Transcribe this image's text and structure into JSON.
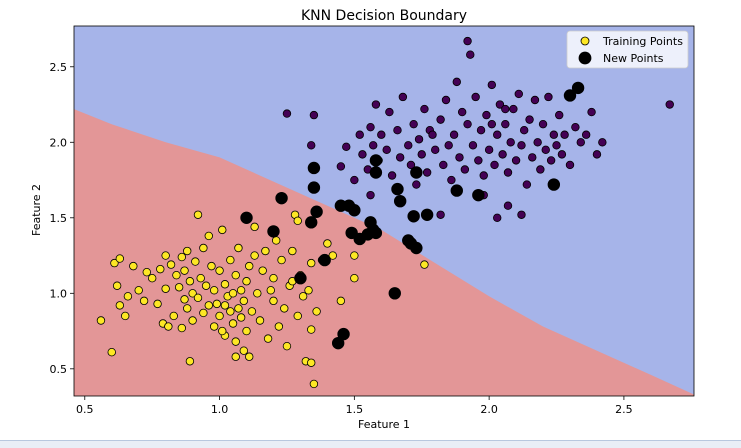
{
  "chart_data": {
    "type": "scatter",
    "title": "KNN Decision Boundary",
    "xlabel": "Feature 1",
    "ylabel": "Feature 2",
    "xlim": [
      0.46,
      2.76
    ],
    "ylim": [
      0.32,
      2.77
    ],
    "x_ticks": [
      0.5,
      1.0,
      1.5,
      2.0,
      2.5
    ],
    "y_ticks": [
      0.5,
      1.0,
      1.5,
      2.0,
      2.5
    ],
    "x_tick_labels": [
      "0.5",
      "1.0",
      "1.5",
      "2.0",
      "2.5"
    ],
    "y_tick_labels": [
      "0.5",
      "1.0",
      "1.5",
      "2.0",
      "2.5"
    ],
    "grid": false,
    "legend_position": "top-right",
    "colors": {
      "region_class0": "#e39697",
      "region_class1": "#a6b4e9",
      "train_class0": "#fde725",
      "train_class1": "#440154",
      "new_point": "#000000"
    },
    "decision_boundary": [
      [
        0.46,
        2.22
      ],
      [
        0.6,
        2.12
      ],
      [
        0.8,
        2.0
      ],
      [
        1.0,
        1.9
      ],
      [
        1.2,
        1.74
      ],
      [
        1.4,
        1.58
      ],
      [
        1.6,
        1.42
      ],
      [
        1.8,
        1.2
      ],
      [
        2.0,
        0.98
      ],
      [
        2.2,
        0.78
      ],
      [
        2.4,
        0.62
      ],
      [
        2.6,
        0.46
      ],
      [
        2.76,
        0.33
      ]
    ],
    "series": [
      {
        "name": "Training Points",
        "class": 0,
        "points": [
          [
            0.56,
            0.82
          ],
          [
            0.6,
            0.61
          ],
          [
            0.61,
            1.2
          ],
          [
            0.62,
            1.05
          ],
          [
            0.63,
            1.23
          ],
          [
            0.63,
            0.92
          ],
          [
            0.65,
            0.85
          ],
          [
            0.66,
            0.98
          ],
          [
            0.68,
            1.18
          ],
          [
            0.7,
            1.02
          ],
          [
            0.72,
            0.95
          ],
          [
            0.73,
            1.14
          ],
          [
            0.75,
            1.1
          ],
          [
            0.77,
            0.93
          ],
          [
            0.78,
            1.16
          ],
          [
            0.79,
            0.8
          ],
          [
            0.8,
            1.25
          ],
          [
            0.8,
            1.03
          ],
          [
            0.81,
            0.78
          ],
          [
            0.82,
            1.19
          ],
          [
            0.83,
            0.85
          ],
          [
            0.84,
            1.12
          ],
          [
            0.85,
            1.04
          ],
          [
            0.86,
            0.77
          ],
          [
            0.86,
            1.24
          ],
          [
            0.87,
            0.96
          ],
          [
            0.87,
            1.15
          ],
          [
            0.88,
            0.9
          ],
          [
            0.88,
            1.28
          ],
          [
            0.89,
            1.08
          ],
          [
            0.89,
            0.55
          ],
          [
            0.9,
            1.0
          ],
          [
            0.9,
            0.82
          ],
          [
            0.91,
            1.21
          ],
          [
            0.92,
            1.52
          ],
          [
            0.92,
            0.97
          ],
          [
            0.93,
            1.1
          ],
          [
            0.94,
            0.87
          ],
          [
            0.94,
            1.3
          ],
          [
            0.95,
            1.05
          ],
          [
            0.96,
            0.92
          ],
          [
            0.96,
            1.38
          ],
          [
            0.97,
            1.18
          ],
          [
            0.98,
            1.02
          ],
          [
            0.98,
            0.78
          ],
          [
            0.99,
            0.93
          ],
          [
            1.0,
            1.15
          ],
          [
            1.0,
            0.85
          ],
          [
            1.01,
            1.42
          ],
          [
            1.02,
            1.06
          ],
          [
            1.02,
            0.72
          ],
          [
            1.03,
            0.98
          ],
          [
            1.04,
            0.88
          ],
          [
            1.04,
            1.22
          ],
          [
            1.05,
            1.0
          ],
          [
            1.05,
            0.8
          ],
          [
            1.06,
            1.12
          ],
          [
            1.06,
            0.68
          ],
          [
            1.07,
            0.9
          ],
          [
            1.07,
            1.3
          ],
          [
            1.08,
            0.84
          ],
          [
            1.08,
            1.02
          ],
          [
            1.09,
            0.62
          ],
          [
            1.09,
            0.95
          ],
          [
            1.1,
            1.08
          ],
          [
            1.1,
            0.75
          ],
          [
            1.11,
            1.18
          ],
          [
            1.11,
            0.58
          ],
          [
            1.12,
            0.88
          ],
          [
            1.13,
            1.25
          ],
          [
            1.14,
            1.0
          ],
          [
            1.15,
            0.82
          ],
          [
            1.16,
            1.15
          ],
          [
            1.17,
            1.28
          ],
          [
            1.18,
            0.7
          ],
          [
            1.19,
            1.02
          ],
          [
            1.2,
            0.95
          ],
          [
            1.2,
            1.1
          ],
          [
            1.21,
            1.35
          ],
          [
            1.22,
            0.78
          ],
          [
            1.23,
            1.22
          ],
          [
            1.24,
            0.9
          ],
          [
            1.25,
            0.65
          ],
          [
            1.26,
            1.05
          ],
          [
            1.27,
            1.28
          ],
          [
            1.28,
            1.52
          ],
          [
            1.29,
            0.85
          ],
          [
            1.3,
            1.12
          ],
          [
            1.31,
            0.98
          ],
          [
            1.32,
            0.55
          ],
          [
            1.33,
            1.02
          ],
          [
            1.34,
            0.76
          ],
          [
            1.35,
            0.4
          ],
          [
            1.36,
            0.88
          ],
          [
            1.38,
            1.22
          ],
          [
            1.4,
            1.33
          ],
          [
            1.42,
            1.25
          ],
          [
            1.45,
            0.95
          ],
          [
            1.5,
            1.1
          ],
          [
            1.65,
            0.99
          ],
          [
            1.76,
            1.19
          ],
          [
            1.01,
            0.75
          ],
          [
            1.02,
            0.92
          ],
          [
            1.06,
            0.58
          ],
          [
            1.13,
            1.44
          ],
          [
            1.29,
            1.48
          ],
          [
            1.27,
            1.08
          ],
          [
            1.34,
            0.54
          ],
          [
            1.34,
            1.2
          ],
          [
            1.5,
            1.25
          ]
        ]
      },
      {
        "name": "Training Points",
        "class": 1,
        "points": [
          [
            1.25,
            2.19
          ],
          [
            1.34,
            1.98
          ],
          [
            1.35,
            2.18
          ],
          [
            1.45,
            1.84
          ],
          [
            1.47,
            1.97
          ],
          [
            1.5,
            1.75
          ],
          [
            1.52,
            2.05
          ],
          [
            1.53,
            1.92
          ],
          [
            1.55,
            1.82
          ],
          [
            1.56,
            2.1
          ],
          [
            1.57,
            1.98
          ],
          [
            1.58,
            2.25
          ],
          [
            1.59,
            1.88
          ],
          [
            1.6,
            2.05
          ],
          [
            1.62,
            1.95
          ],
          [
            1.63,
            2.2
          ],
          [
            1.64,
            1.78
          ],
          [
            1.66,
            2.08
          ],
          [
            1.67,
            1.9
          ],
          [
            1.68,
            2.3
          ],
          [
            1.7,
            1.98
          ],
          [
            1.71,
            1.85
          ],
          [
            1.72,
            2.12
          ],
          [
            1.73,
            1.72
          ],
          [
            1.74,
            2.02
          ],
          [
            1.75,
            1.92
          ],
          [
            1.76,
            2.22
          ],
          [
            1.77,
            1.8
          ],
          [
            1.78,
            2.08
          ],
          [
            1.8,
            1.95
          ],
          [
            1.82,
            2.15
          ],
          [
            1.83,
            1.85
          ],
          [
            1.84,
            2.28
          ],
          [
            1.85,
            1.98
          ],
          [
            1.86,
            1.75
          ],
          [
            1.87,
            2.05
          ],
          [
            1.88,
            2.4
          ],
          [
            1.89,
            1.9
          ],
          [
            1.9,
            2.2
          ],
          [
            1.91,
            1.82
          ],
          [
            1.92,
            2.12
          ],
          [
            1.93,
            2.58
          ],
          [
            1.94,
            1.98
          ],
          [
            1.95,
            2.3
          ],
          [
            1.96,
            1.88
          ],
          [
            1.97,
            2.08
          ],
          [
            1.98,
            1.78
          ],
          [
            1.99,
            2.18
          ],
          [
            2.0,
            1.95
          ],
          [
            2.01,
            2.38
          ],
          [
            2.02,
            1.85
          ],
          [
            2.03,
            2.05
          ],
          [
            2.04,
            2.25
          ],
          [
            2.05,
            1.92
          ],
          [
            2.06,
            2.12
          ],
          [
            2.07,
            1.8
          ],
          [
            2.08,
            2.0
          ],
          [
            2.09,
            2.22
          ],
          [
            2.1,
            1.88
          ],
          [
            2.11,
            2.32
          ],
          [
            2.12,
            1.98
          ],
          [
            2.13,
            2.08
          ],
          [
            2.14,
            1.72
          ],
          [
            2.15,
            2.15
          ],
          [
            2.16,
            1.9
          ],
          [
            2.17,
            2.28
          ],
          [
            2.18,
            2.0
          ],
          [
            2.19,
            1.82
          ],
          [
            2.2,
            2.12
          ],
          [
            2.21,
            1.95
          ],
          [
            2.22,
            2.3
          ],
          [
            2.23,
            1.88
          ],
          [
            2.24,
            2.05
          ],
          [
            2.25,
            1.98
          ],
          [
            2.26,
            2.18
          ],
          [
            2.27,
            1.92
          ],
          [
            2.28,
            2.05
          ],
          [
            2.3,
            1.85
          ],
          [
            2.32,
            2.1
          ],
          [
            2.34,
            2.0
          ],
          [
            2.36,
            2.05
          ],
          [
            2.38,
            2.2
          ],
          [
            2.4,
            1.92
          ],
          [
            2.42,
            2.0
          ],
          [
            2.67,
            2.25
          ],
          [
            1.92,
            2.67
          ],
          [
            1.98,
            1.65
          ],
          [
            2.03,
            1.5
          ],
          [
            2.07,
            1.58
          ],
          [
            2.12,
            1.52
          ],
          [
            1.82,
            1.52
          ],
          [
            1.56,
            1.65
          ],
          [
            1.79,
            2.05
          ],
          [
            2.01,
            2.12
          ],
          [
            2.06,
            2.22
          ]
        ]
      },
      {
        "name": "New Points",
        "points": [
          [
            1.1,
            1.5
          ],
          [
            1.2,
            1.41
          ],
          [
            1.23,
            1.63
          ],
          [
            1.3,
            1.1
          ],
          [
            1.34,
            1.47
          ],
          [
            1.35,
            1.7
          ],
          [
            1.35,
            1.83
          ],
          [
            1.36,
            1.54
          ],
          [
            1.39,
            1.22
          ],
          [
            1.44,
            0.67
          ],
          [
            1.46,
            0.73
          ],
          [
            1.48,
            1.58
          ],
          [
            1.49,
            1.4
          ],
          [
            1.5,
            1.55
          ],
          [
            1.52,
            1.36
          ],
          [
            1.55,
            1.39
          ],
          [
            1.56,
            1.47
          ],
          [
            1.57,
            1.42
          ],
          [
            1.58,
            1.4
          ],
          [
            1.58,
            1.8
          ],
          [
            1.58,
            1.88
          ],
          [
            1.65,
            1.0
          ],
          [
            1.66,
            1.69
          ],
          [
            1.67,
            1.61
          ],
          [
            1.7,
            1.35
          ],
          [
            1.71,
            1.33
          ],
          [
            1.72,
            1.51
          ],
          [
            1.73,
            1.3
          ],
          [
            1.73,
            1.8
          ],
          [
            1.77,
            1.52
          ],
          [
            1.88,
            1.68
          ],
          [
            1.96,
            1.65
          ],
          [
            2.24,
            1.72
          ],
          [
            2.33,
            2.36
          ],
          [
            2.3,
            2.31
          ],
          [
            1.45,
            1.58
          ]
        ]
      }
    ],
    "legend": [
      {
        "label": "Training Points",
        "marker": "yellow-circle"
      },
      {
        "label": "New Points",
        "marker": "black-circle"
      }
    ]
  }
}
